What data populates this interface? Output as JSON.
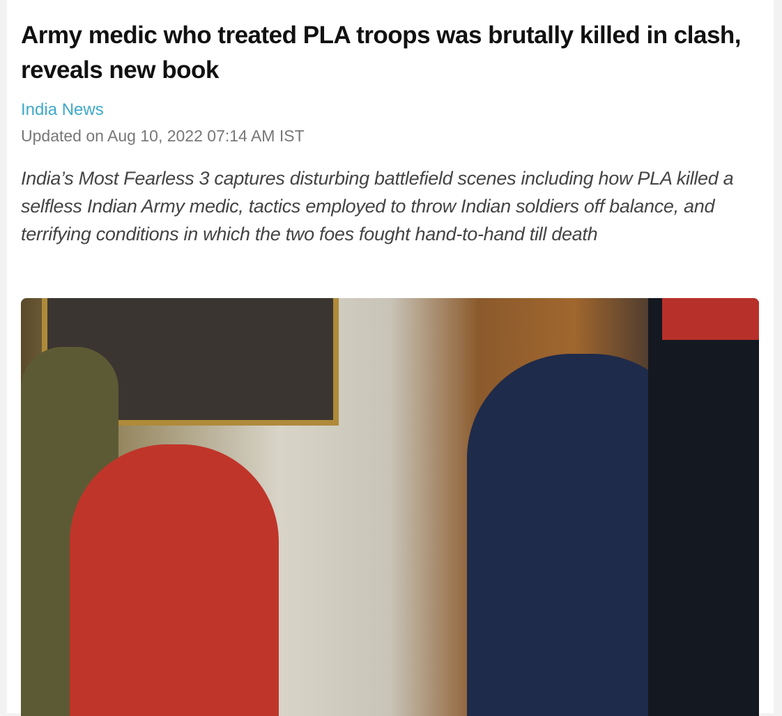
{
  "article": {
    "headline": "Army medic who treated PLA troops was brutally killed in clash, reveals new book",
    "category": "India News",
    "updated": "Updated on Aug 10, 2022 07:14 AM IST",
    "summary": "India’s Most Fearless 3 captures disturbing battlefield scenes including how PLA killed a selfless Indian Army medic, tactics employed to throw Indian soldiers off balance, and terrifying conditions in which the two foes fought hand-to-hand till death"
  },
  "colors": {
    "category": "#3fa9c9",
    "headline": "#111111",
    "meta": "#777777"
  }
}
